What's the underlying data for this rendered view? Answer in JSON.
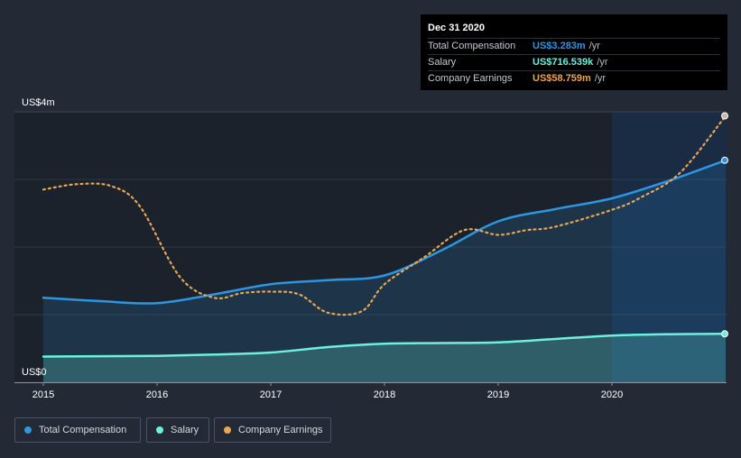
{
  "chart_data": {
    "type": "area",
    "title": "",
    "xlabel": "",
    "ylabel": "",
    "ylim": [
      0,
      4
    ],
    "y_unit": "US$m",
    "x_ticks": [
      "2015",
      "2016",
      "2017",
      "2018",
      "2019",
      "2020"
    ],
    "y_ticks": [
      {
        "value": 4,
        "label": "US$4m"
      },
      {
        "value": 0,
        "label": "US$0"
      }
    ],
    "grid": true,
    "forecast_start": 2020.0,
    "series": [
      {
        "name": "Total Compensation",
        "color": "#2d96e3",
        "style": "solid-area",
        "x": [
          2015.0,
          2015.5,
          2016.0,
          2016.5,
          2017.0,
          2017.5,
          2018.0,
          2018.5,
          2019.0,
          2019.5,
          2020.0,
          2020.5,
          2021.0
        ],
        "values": [
          1.25,
          1.2,
          1.17,
          1.3,
          1.45,
          1.51,
          1.58,
          1.95,
          2.38,
          2.56,
          2.72,
          2.98,
          3.283
        ]
      },
      {
        "name": "Salary",
        "color": "#6ff0dc",
        "style": "solid-area",
        "x": [
          2015.0,
          2015.5,
          2016.0,
          2016.5,
          2017.0,
          2017.5,
          2018.0,
          2018.5,
          2019.0,
          2019.5,
          2020.0,
          2020.5,
          2021.0
        ],
        "values": [
          0.38,
          0.385,
          0.39,
          0.41,
          0.44,
          0.52,
          0.57,
          0.58,
          0.59,
          0.64,
          0.69,
          0.71,
          0.7165
        ]
      },
      {
        "name": "Company Earnings",
        "color": "#e9a652",
        "style": "dotted-line",
        "x": [
          2015.0,
          2015.3,
          2015.6,
          2015.85,
          2016.2,
          2016.5,
          2016.75,
          2017.0,
          2017.25,
          2017.5,
          2017.8,
          2018.0,
          2018.35,
          2018.7,
          2019.0,
          2019.25,
          2019.5,
          2020.0,
          2020.25,
          2020.6,
          2021.0
        ],
        "values": [
          2.85,
          2.93,
          2.9,
          2.6,
          1.56,
          1.25,
          1.32,
          1.34,
          1.3,
          1.03,
          1.05,
          1.45,
          1.85,
          2.25,
          2.18,
          2.25,
          2.3,
          2.55,
          2.73,
          3.1,
          3.94
        ]
      }
    ]
  },
  "tooltip": {
    "date": "Dec 31 2020",
    "rows": [
      {
        "label": "Total Compensation",
        "value": "US$3.283m",
        "unit": "/yr",
        "color": "#2d96e3"
      },
      {
        "label": "Salary",
        "value": "US$716.539k",
        "unit": "/yr",
        "color": "#6ff0dc"
      },
      {
        "label": "Company Earnings",
        "value": "US$58.759m",
        "unit": "/yr",
        "color": "#e9a652"
      }
    ]
  },
  "legend": [
    {
      "label": "Total Compensation",
      "color": "#2d96e3"
    },
    {
      "label": "Salary",
      "color": "#6ff0dc"
    },
    {
      "label": "Company Earnings",
      "color": "#e9a652"
    }
  ]
}
